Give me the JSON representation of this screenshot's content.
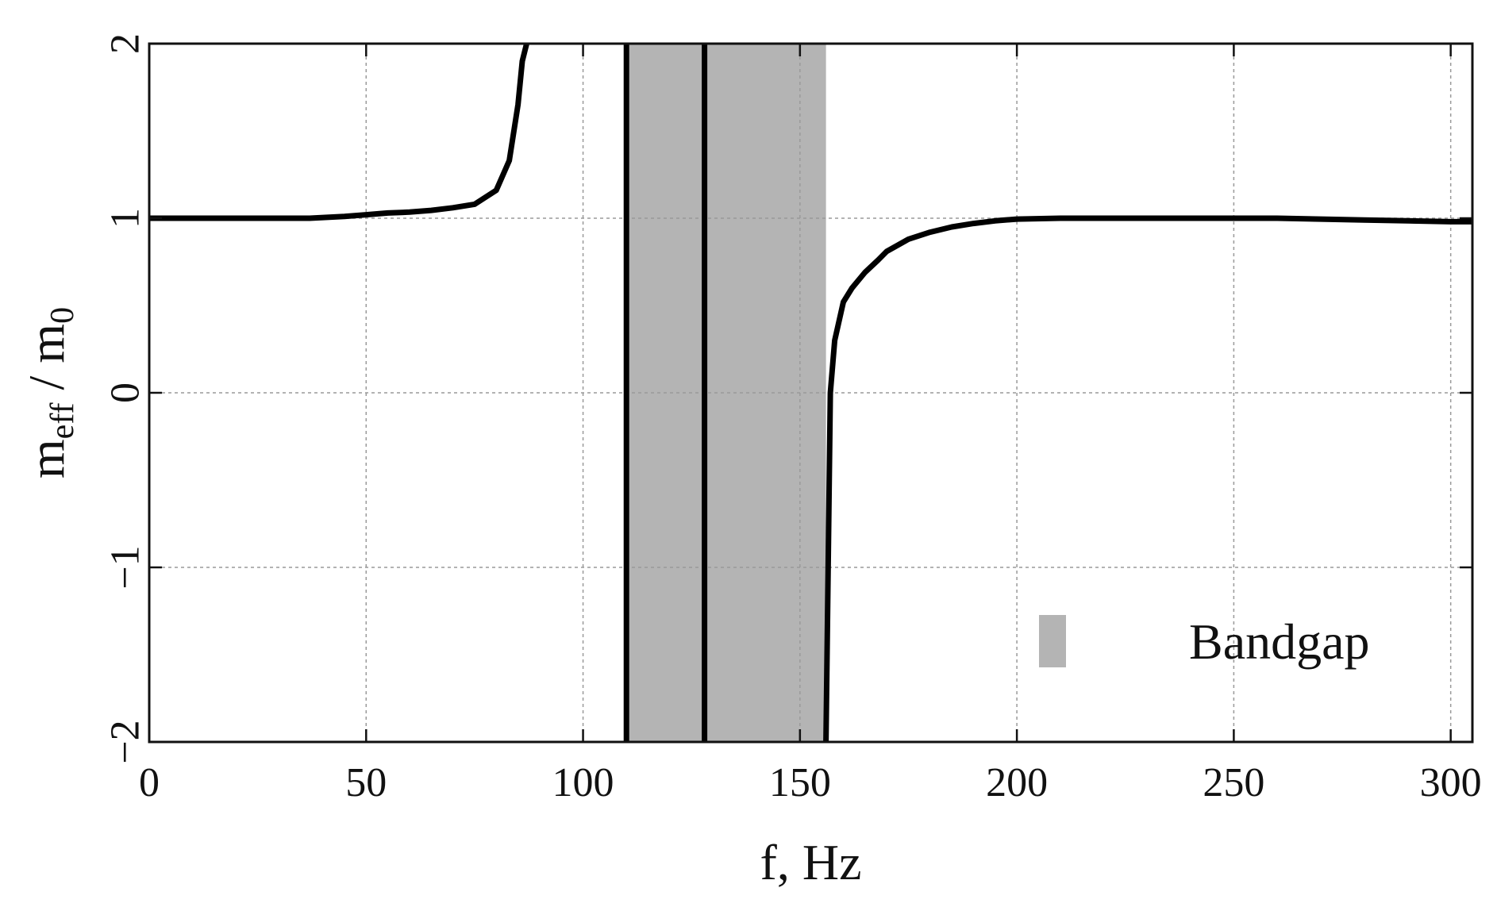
{
  "chart_data": {
    "type": "line",
    "title": "",
    "xlabel": "f, Hz",
    "ylabel": {
      "base": "m",
      "sub1": "eff",
      "sep": " / m",
      "sub2": "0"
    },
    "xlim": [
      0,
      305
    ],
    "ylim": [
      -2,
      2
    ],
    "xticks": [
      0,
      50,
      100,
      150,
      200,
      250,
      300
    ],
    "xtick_labels": [
      "0",
      "50",
      "100",
      "150",
      "200",
      "250",
      "300"
    ],
    "yticks": [
      -2,
      -1,
      0,
      1,
      2
    ],
    "ytick_labels": [
      "−2",
      "−1",
      "0",
      "1",
      "2"
    ],
    "grid": true,
    "legend": {
      "placement": "bottom-right",
      "entries": [
        {
          "label": "Bandgap",
          "color": "#b4b4b4"
        }
      ]
    },
    "bandgap": {
      "x_start": 110,
      "x_end": 156,
      "color": "#b4b4b4"
    },
    "vertical_lines_x": [
      110,
      128
    ],
    "series": [
      {
        "x": [
          0,
          10,
          20,
          30,
          37,
          45,
          50,
          55,
          60,
          65,
          70,
          75,
          80,
          83,
          85,
          86,
          87
        ],
        "y": [
          1.0,
          1.0,
          1.0,
          1.0,
          1.0,
          1.01,
          1.02,
          1.03,
          1.035,
          1.045,
          1.06,
          1.08,
          1.16,
          1.33,
          1.65,
          1.9,
          2.0
        ]
      },
      {
        "x": [
          156,
          157,
          158,
          160,
          162,
          165,
          168,
          170,
          175,
          180,
          185,
          190,
          195,
          200,
          210,
          220,
          230,
          240,
          250,
          260,
          270,
          280,
          290,
          300,
          305
        ],
        "y": [
          -2.0,
          0.0,
          0.3,
          0.52,
          0.6,
          0.69,
          0.76,
          0.81,
          0.88,
          0.92,
          0.95,
          0.97,
          0.985,
          0.995,
          1.0,
          1.0,
          1.0,
          1.0,
          1.0,
          1.0,
          0.995,
          0.99,
          0.985,
          0.98,
          0.98
        ]
      }
    ]
  }
}
